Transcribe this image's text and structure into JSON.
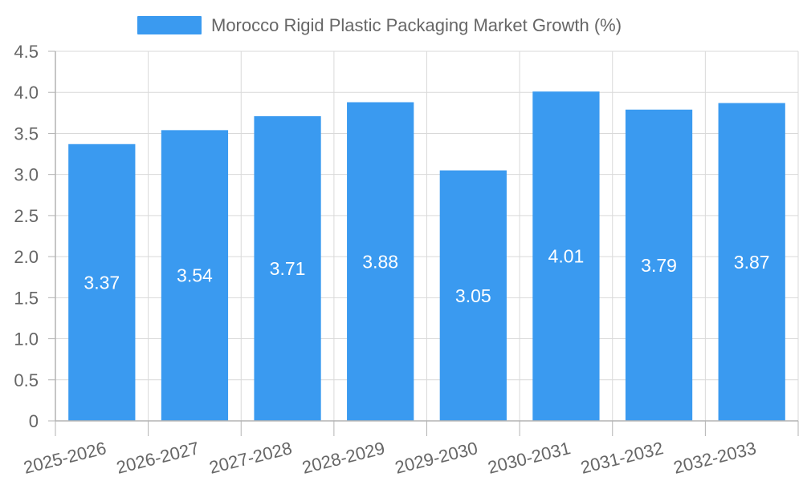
{
  "chart_data": {
    "type": "bar",
    "title": "",
    "xlabel": "",
    "ylabel": "",
    "categories": [
      "2025-2026",
      "2026-2027",
      "2027-2028",
      "2028-2029",
      "2029-2030",
      "2030-2031",
      "2031-2032",
      "2032-2033"
    ],
    "series": [
      {
        "name": "Morocco Rigid Plastic Packaging Market Growth (%)",
        "values": [
          3.37,
          3.54,
          3.71,
          3.88,
          3.05,
          4.01,
          3.79,
          3.87
        ],
        "color": "#3a9af0"
      }
    ],
    "data_labels": [
      "3.37",
      "3.54",
      "3.71",
      "3.88",
      "3.05",
      "4.01",
      "3.79",
      "3.87"
    ],
    "ylim": [
      0,
      4.5
    ],
    "y_ticks": [
      0,
      0.5,
      1.0,
      1.5,
      2.0,
      2.5,
      3.0,
      3.5,
      4.0,
      4.5
    ],
    "y_tick_labels": [
      "0",
      "0.5",
      "1.0",
      "1.5",
      "2.0",
      "2.5",
      "3.0",
      "3.5",
      "4.0",
      "4.5"
    ],
    "grid": true,
    "legend_position": "top-center"
  }
}
